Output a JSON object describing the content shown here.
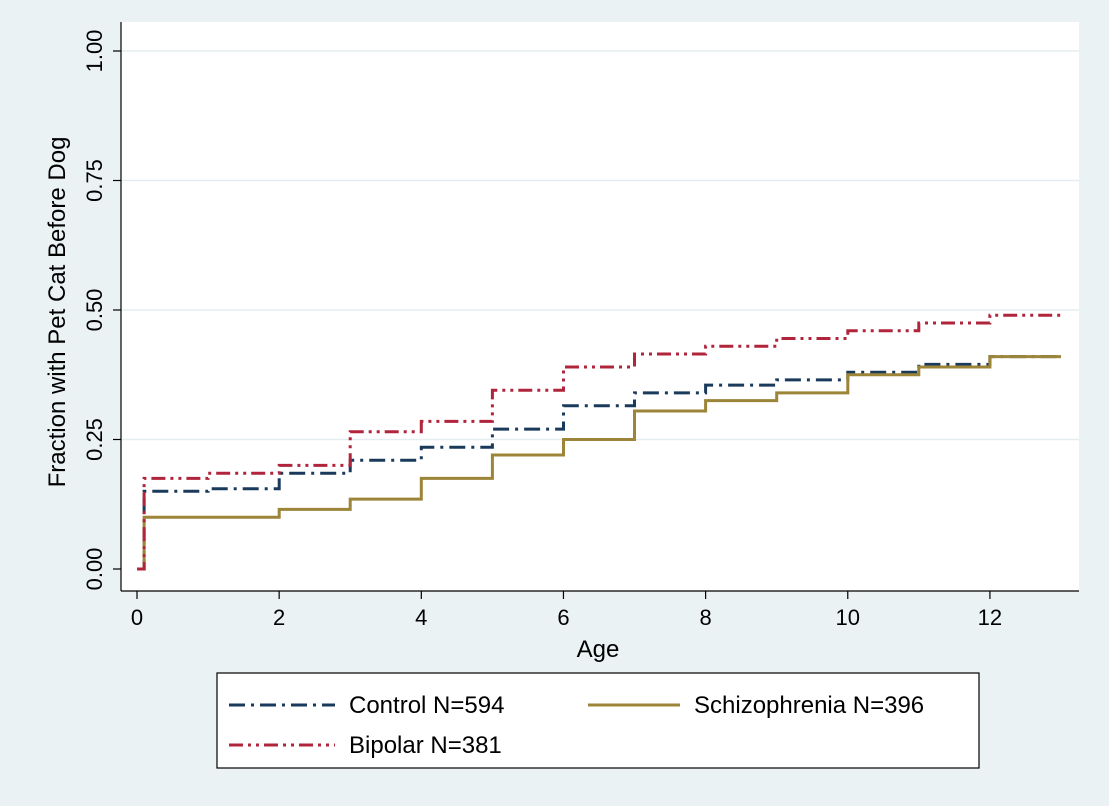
{
  "chart_data": {
    "type": "line",
    "step": true,
    "xlabel": "Age",
    "ylabel": "Fraction with Pet Cat Before Dog",
    "xlim": [
      0,
      13
    ],
    "ylim": [
      0,
      1
    ],
    "x_ticks": [
      0,
      2,
      4,
      6,
      8,
      10,
      12
    ],
    "x_tick_labels": [
      "0",
      "2",
      "4",
      "6",
      "8",
      "10",
      "12"
    ],
    "y_ticks": [
      0,
      0.25,
      0.5,
      0.75,
      1.0
    ],
    "y_tick_labels": [
      "0.00",
      "0.25",
      "0.50",
      "0.75",
      "1.00"
    ],
    "grid": true,
    "legend_position": "bottom",
    "series": [
      {
        "name": "Control N=594",
        "color": "#1a3a5c",
        "dash": "dash-dot",
        "points": [
          [
            0,
            0
          ],
          [
            0.1,
            0
          ],
          [
            0.1,
            0.15
          ],
          [
            1,
            0.155
          ],
          [
            2,
            0.185
          ],
          [
            3,
            0.21
          ],
          [
            4,
            0.235
          ],
          [
            5,
            0.27
          ],
          [
            6,
            0.315
          ],
          [
            7,
            0.34
          ],
          [
            8,
            0.355
          ],
          [
            9,
            0.365
          ],
          [
            10,
            0.38
          ],
          [
            11,
            0.395
          ],
          [
            12,
            0.41
          ],
          [
            13,
            0.41
          ]
        ]
      },
      {
        "name": "Schizophrenia N=396",
        "color": "#9c8438",
        "dash": "solid",
        "points": [
          [
            0,
            0
          ],
          [
            0.1,
            0
          ],
          [
            0.1,
            0.1
          ],
          [
            2,
            0.115
          ],
          [
            3,
            0.135
          ],
          [
            4,
            0.175
          ],
          [
            5,
            0.22
          ],
          [
            6,
            0.25
          ],
          [
            7,
            0.305
          ],
          [
            8,
            0.325
          ],
          [
            9,
            0.34
          ],
          [
            10,
            0.375
          ],
          [
            11,
            0.39
          ],
          [
            12,
            0.41
          ],
          [
            13,
            0.41
          ]
        ]
      },
      {
        "name": "Bipolar N=381",
        "color": "#b0243c",
        "dash": "dash-dot-dot",
        "points": [
          [
            0,
            0
          ],
          [
            0.1,
            0
          ],
          [
            0.1,
            0.175
          ],
          [
            1,
            0.185
          ],
          [
            2,
            0.2
          ],
          [
            3,
            0.265
          ],
          [
            4,
            0.285
          ],
          [
            5,
            0.345
          ],
          [
            6,
            0.39
          ],
          [
            7,
            0.415
          ],
          [
            8,
            0.43
          ],
          [
            9,
            0.445
          ],
          [
            10,
            0.46
          ],
          [
            11,
            0.475
          ],
          [
            12,
            0.49
          ],
          [
            13,
            0.49
          ]
        ]
      }
    ]
  }
}
